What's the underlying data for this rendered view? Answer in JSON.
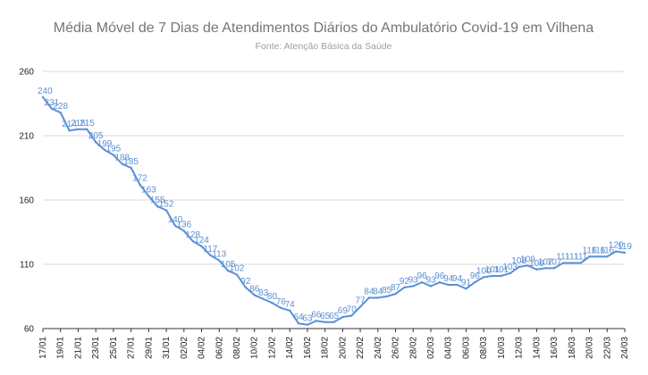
{
  "chart_data": {
    "type": "line",
    "title": "Média Móvel de 7 Dias de Atendimentos Diários do Ambulatório Covid-19 em Vilhena",
    "subtitle": "Fonte: Atenção Básica da Saúde",
    "xlabel": "",
    "ylabel": "",
    "ylim": [
      60,
      260
    ],
    "yticks": [
      "60",
      "110",
      "160",
      "210",
      "260"
    ],
    "grid": true,
    "legend": "none",
    "line_color": "#5b8fd6",
    "x": [
      "17/01",
      "18/01",
      "19/01",
      "20/01",
      "21/01",
      "22/01",
      "23/01",
      "24/01",
      "25/01",
      "26/01",
      "27/01",
      "28/01",
      "29/01",
      "30/01",
      "31/01",
      "01/02",
      "02/02",
      "03/02",
      "04/02",
      "05/02",
      "06/02",
      "07/02",
      "08/02",
      "09/02",
      "10/02",
      "11/02",
      "12/02",
      "13/02",
      "14/02",
      "15/02",
      "16/02",
      "17/02",
      "18/02",
      "19/02",
      "20/02",
      "21/02",
      "22/02",
      "23/02",
      "24/02",
      "25/02",
      "26/02",
      "27/02",
      "28/02",
      "01/03",
      "02/03",
      "03/03",
      "04/03",
      "05/03",
      "06/03",
      "07/03",
      "08/03",
      "09/03",
      "10/03",
      "11/03",
      "12/03",
      "13/03",
      "14/03",
      "15/03",
      "16/03",
      "17/03",
      "18/03",
      "19/03",
      "20/03",
      "21/03",
      "22/03",
      "23/03",
      "24/03"
    ],
    "xtick_labels": [
      "17/01",
      "19/01",
      "21/01",
      "23/01",
      "25/01",
      "27/01",
      "29/01",
      "31/01",
      "02/02",
      "04/02",
      "06/02",
      "08/02",
      "10/02",
      "12/02",
      "14/02",
      "16/02",
      "18/02",
      "20/02",
      "22/02",
      "24/02",
      "26/02",
      "28/02",
      "02/03",
      "04/03",
      "06/03",
      "08/03",
      "10/03",
      "12/03",
      "14/03",
      "16/03",
      "18/03",
      "20/03",
      "22/03",
      "24/03"
    ],
    "values": [
      240,
      231,
      228,
      214,
      215,
      215,
      205,
      199,
      195,
      188,
      185,
      172,
      163,
      155,
      152,
      140,
      136,
      128,
      124,
      117,
      113,
      105,
      102,
      92,
      86,
      83,
      80,
      76,
      74,
      64,
      63,
      66,
      65,
      65,
      69,
      70,
      77,
      84,
      84,
      85,
      87,
      92,
      93,
      96,
      93,
      96,
      94,
      94,
      91,
      96,
      100,
      101,
      101,
      103,
      108,
      109,
      106,
      107,
      107,
      111,
      111,
      111,
      116,
      116,
      116,
      120,
      119
    ],
    "data_labels": [
      "240",
      "231",
      "228",
      "214",
      "215",
      "215",
      "205",
      "199",
      "195",
      "188",
      "185",
      "172",
      "163",
      "155",
      "152",
      "140",
      "136",
      "128",
      "124",
      "117",
      "113",
      "105",
      "102",
      "92",
      "86",
      "83",
      "80",
      "76",
      "74",
      "64",
      "63",
      "66",
      "65",
      "65",
      "69",
      "70",
      "77",
      "84",
      "84",
      "85",
      "87",
      "92",
      "93",
      "96",
      "93",
      "96",
      "94",
      "94",
      "91",
      "96",
      "100",
      "101",
      "101",
      "103",
      "108",
      "109",
      "106",
      "107",
      "107",
      "111",
      "111",
      "111",
      "116",
      "116",
      "116",
      "120",
      "119"
    ]
  }
}
